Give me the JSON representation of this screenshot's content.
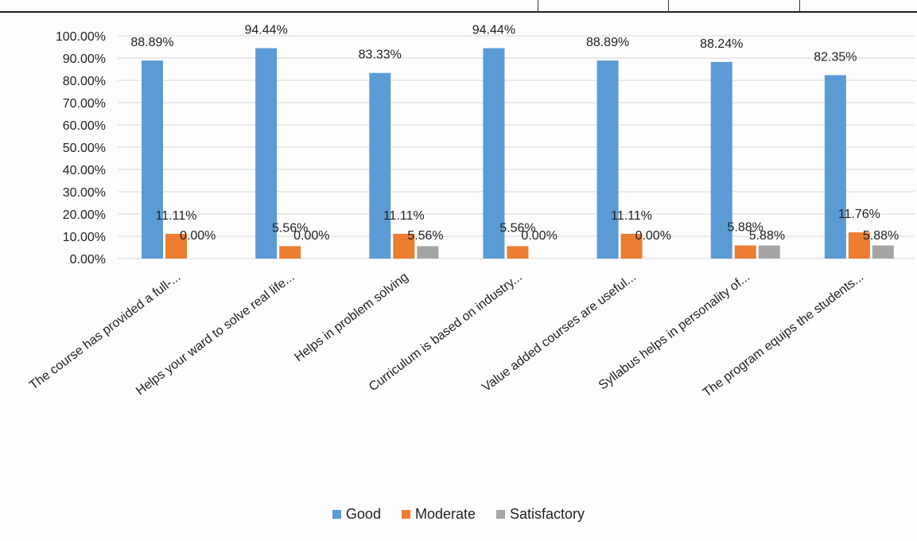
{
  "chart_data": {
    "type": "bar",
    "title": "",
    "xlabel": "",
    "ylabel": "",
    "ylim": [
      0,
      100
    ],
    "yticks": [
      "0.00%",
      "10.00%",
      "20.00%",
      "30.00%",
      "40.00%",
      "50.00%",
      "60.00%",
      "70.00%",
      "80.00%",
      "90.00%",
      "100.00%"
    ],
    "grid": true,
    "legend_position": "bottom",
    "categories": [
      "The course has provided a full-...",
      "Helps your ward to solve real life...",
      "Helps in problem solving",
      "Curriculum is based on industry...",
      "Value added courses are useful...",
      "Syllabus helps in personality of...",
      "The program equips the students..."
    ],
    "series": [
      {
        "name": "Good",
        "color": "#5b9bd5",
        "values": [
          88.89,
          94.44,
          83.33,
          94.44,
          88.89,
          88.24,
          82.35
        ],
        "labels": [
          "88.89%",
          "94.44%",
          "83.33%",
          "94.44%",
          "88.89%",
          "88.24%",
          "82.35%"
        ]
      },
      {
        "name": "Moderate",
        "color": "#ed7d31",
        "values": [
          11.11,
          5.56,
          11.11,
          5.56,
          11.11,
          5.88,
          11.76
        ],
        "labels": [
          "11.11%",
          "5.56%",
          "11.11%",
          "5.56%",
          "11.11%",
          "5.88%",
          "11.76%"
        ]
      },
      {
        "name": "Satisfactory",
        "color": "#a5a5a5",
        "values": [
          0.0,
          0.0,
          5.56,
          0.0,
          0.0,
          5.88,
          5.88
        ],
        "labels": [
          "0.00%",
          "0.00%",
          "5.56%",
          "0.00%",
          "0.00%",
          "5.88%",
          "5.88%"
        ]
      }
    ]
  }
}
